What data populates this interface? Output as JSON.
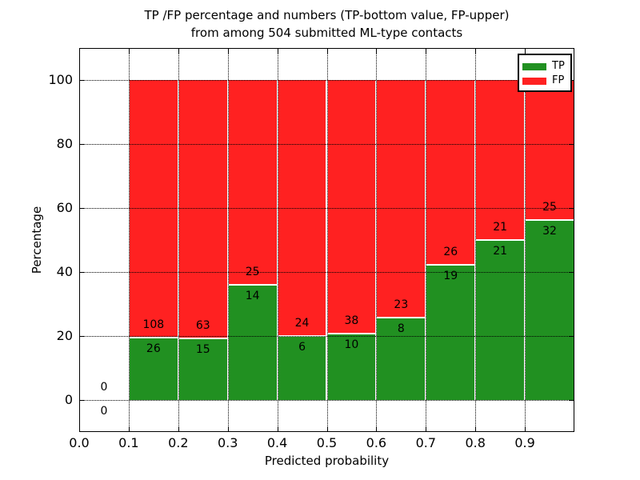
{
  "figure": {
    "title_line1": "TP /FP percentage and numbers (TP-bottom value, FP-upper)",
    "title_line2": "from among 504 submitted ML-type contacts",
    "xlabel": "Predicted probability",
    "ylabel": "Percentage"
  },
  "legend": {
    "position": "upper right",
    "items": [
      {
        "label": "TP",
        "color": "#219021"
      },
      {
        "label": "FP",
        "color": "#ff2121"
      }
    ]
  },
  "colors": {
    "tp": "#219021",
    "fp": "#ff2121",
    "grid": "#000000",
    "frame": "#000000",
    "background": "#ffffff"
  },
  "chart_data": {
    "type": "bar",
    "stacked": true,
    "normalized_to_percent": true,
    "title": "TP /FP percentage and numbers (TP-bottom value, FP-upper) from among 504 submitted ML-type contacts",
    "xlabel": "Predicted probability",
    "ylabel": "Percentage",
    "xlim": [
      0.0,
      1.0
    ],
    "ylim": [
      -10,
      110
    ],
    "grid": true,
    "legend_position": "upper right",
    "total_contacts": 504,
    "x_ticks": [
      {
        "value": 0.0,
        "label": "0.0"
      },
      {
        "value": 0.1,
        "label": "0.1"
      },
      {
        "value": 0.2,
        "label": "0.2"
      },
      {
        "value": 0.3,
        "label": "0.3"
      },
      {
        "value": 0.4,
        "label": "0.4"
      },
      {
        "value": 0.5,
        "label": "0.5"
      },
      {
        "value": 0.6,
        "label": "0.6"
      },
      {
        "value": 0.7,
        "label": "0.7"
      },
      {
        "value": 0.8,
        "label": "0.8"
      },
      {
        "value": 0.9,
        "label": "0.9"
      }
    ],
    "y_ticks": [
      {
        "value": 0,
        "label": "0"
      },
      {
        "value": 20,
        "label": "20"
      },
      {
        "value": 40,
        "label": "40"
      },
      {
        "value": 60,
        "label": "60"
      },
      {
        "value": 80,
        "label": "80"
      },
      {
        "value": 100,
        "label": "100"
      }
    ],
    "x_gridlines": [
      0.1,
      0.2,
      0.3,
      0.4,
      0.5,
      0.6,
      0.7,
      0.8,
      0.9
    ],
    "series": [
      {
        "name": "TP",
        "values": [
          0,
          26,
          15,
          14,
          6,
          10,
          8,
          19,
          21,
          32
        ]
      },
      {
        "name": "FP",
        "values": [
          0,
          108,
          63,
          25,
          24,
          38,
          23,
          26,
          21,
          25
        ]
      }
    ],
    "bins": [
      {
        "x0": 0.0,
        "x1": 0.1,
        "tp": 0,
        "fp": 0
      },
      {
        "x0": 0.1,
        "x1": 0.2,
        "tp": 26,
        "fp": 108
      },
      {
        "x0": 0.2,
        "x1": 0.3,
        "tp": 15,
        "fp": 63
      },
      {
        "x0": 0.3,
        "x1": 0.4,
        "tp": 14,
        "fp": 25
      },
      {
        "x0": 0.4,
        "x1": 0.5,
        "tp": 6,
        "fp": 24
      },
      {
        "x0": 0.5,
        "x1": 0.6,
        "tp": 10,
        "fp": 38
      },
      {
        "x0": 0.6,
        "x1": 0.7,
        "tp": 8,
        "fp": 23
      },
      {
        "x0": 0.7,
        "x1": 0.8,
        "tp": 19,
        "fp": 26
      },
      {
        "x0": 0.8,
        "x1": 0.9,
        "tp": 21,
        "fp": 21
      },
      {
        "x0": 0.9,
        "x1": 1.0,
        "tp": 32,
        "fp": 25
      }
    ]
  }
}
